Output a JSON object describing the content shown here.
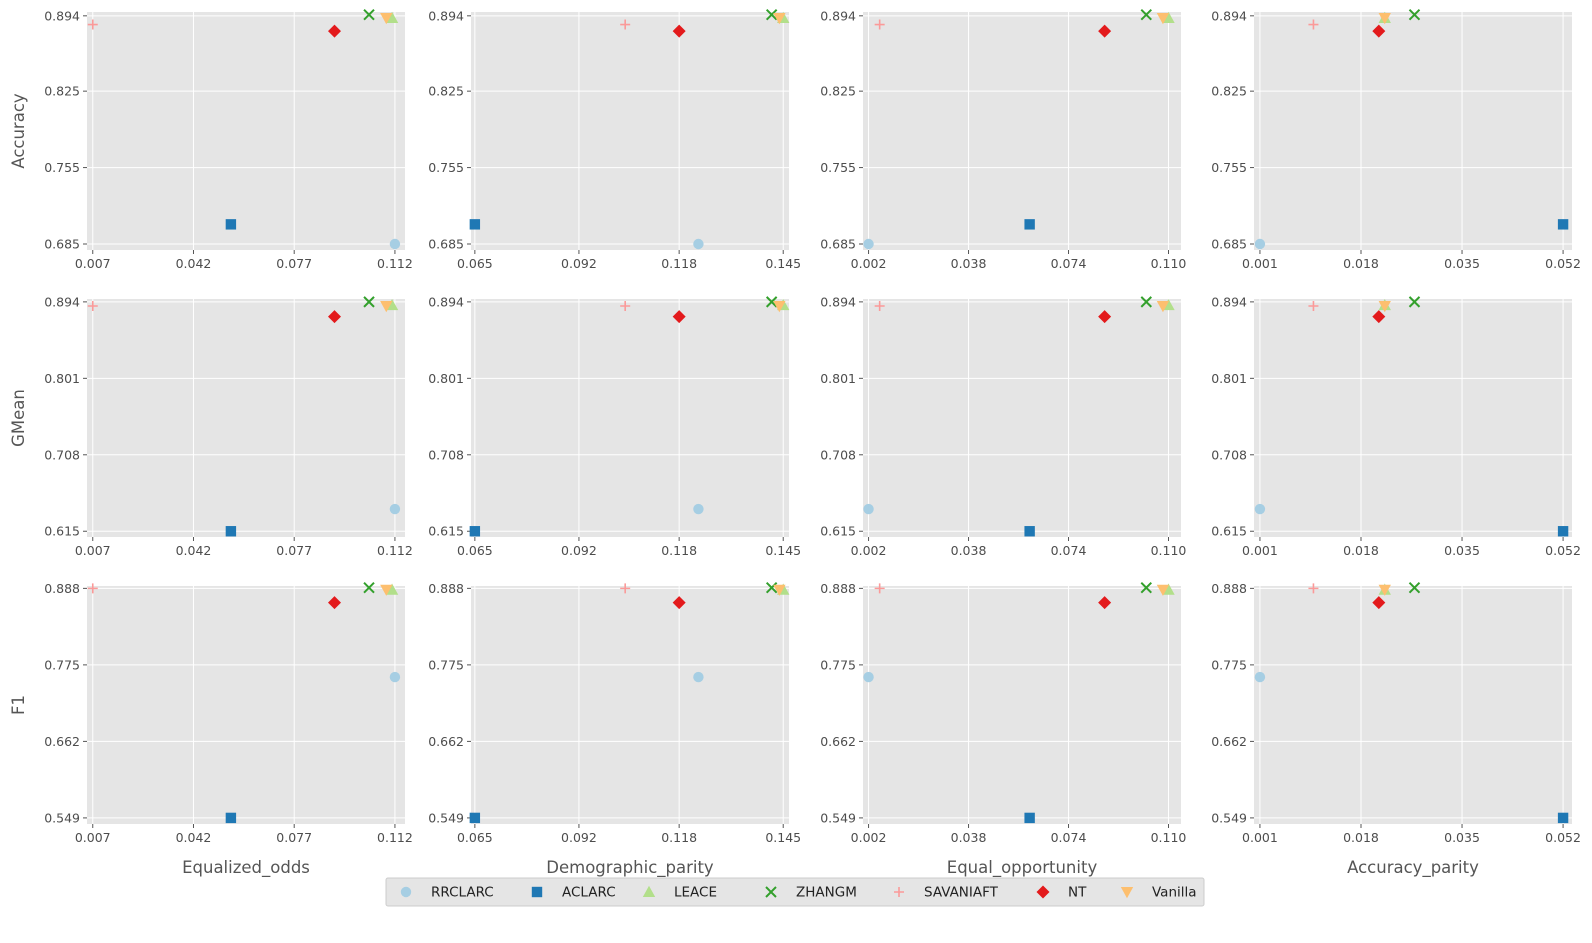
{
  "legend": [
    {
      "name": "RRCLARC",
      "color": "#a6cee3",
      "marker": "circle"
    },
    {
      "name": "ACLARC",
      "color": "#1f78b4",
      "marker": "square"
    },
    {
      "name": "LEACE",
      "color": "#b2df8a",
      "marker": "triangle-up"
    },
    {
      "name": "ZHANGM",
      "color": "#33a02c",
      "marker": "x"
    },
    {
      "name": "SAVANIAFT",
      "color": "#fb9a99",
      "marker": "plus"
    },
    {
      "name": "NT",
      "color": "#e31a1c",
      "marker": "diamond"
    },
    {
      "name": "Vanilla",
      "color": "#fdbf6f",
      "marker": "triangle-down"
    }
  ],
  "chart_data": {
    "type": "scatter",
    "grid": true,
    "legend_position": "bottom-center",
    "row_metrics": [
      "Accuracy",
      "GMean",
      "F1"
    ],
    "col_metrics": [
      "Equalized_odds",
      "Demographic_parity",
      "Equal_opportunity",
      "Accuracy_parity"
    ],
    "x_ticks": [
      [
        "0.007",
        "0.042",
        "0.077",
        "0.112"
      ],
      [
        "0.065",
        "0.092",
        "0.118",
        "0.145"
      ],
      [
        "0.002",
        "0.038",
        "0.074",
        "0.110"
      ],
      [
        "0.001",
        "0.018",
        "0.035",
        "0.052"
      ]
    ],
    "y_ticks": [
      [
        "0.685",
        "0.755",
        "0.825",
        "0.894"
      ],
      [
        "0.615",
        "0.708",
        "0.801",
        "0.894"
      ],
      [
        "0.549",
        "0.662",
        "0.775",
        "0.888"
      ]
    ],
    "x_ranges": [
      [
        0.005,
        0.1155
      ],
      [
        0.064,
        0.1465
      ],
      [
        0.0,
        0.1145
      ],
      [
        0.0,
        0.0535
      ]
    ],
    "y_ranges": [
      [
        0.6795,
        0.8975
      ],
      [
        0.608,
        0.8975
      ],
      [
        0.54,
        0.8915
      ]
    ],
    "x_values": {
      "RRCLARC": [
        0.112,
        0.123,
        0.002,
        0.001
      ],
      "ACLARC": [
        0.055,
        0.065,
        0.06,
        0.052
      ],
      "LEACE": [
        0.111,
        0.145,
        0.11,
        0.022
      ],
      "ZHANGM": [
        0.103,
        0.142,
        0.102,
        0.027
      ],
      "SAVANIAFT": [
        0.007,
        0.104,
        0.006,
        0.01
      ],
      "NT": [
        0.091,
        0.118,
        0.087,
        0.021
      ],
      "Vanilla": [
        0.109,
        0.144,
        0.108,
        0.022
      ]
    },
    "y_values": {
      "Accuracy": {
        "RRCLARC": 0.685,
        "ACLARC": 0.703,
        "LEACE": 0.892,
        "ZHANGM": 0.895,
        "SAVANIAFT": 0.886,
        "NT": 0.88,
        "Vanilla": 0.892
      },
      "GMean": {
        "RRCLARC": 0.642,
        "ACLARC": 0.615,
        "LEACE": 0.89,
        "ZHANGM": 0.894,
        "SAVANIAFT": 0.889,
        "NT": 0.876,
        "Vanilla": 0.889
      },
      "F1": {
        "RRCLARC": 0.757,
        "ACLARC": 0.549,
        "LEACE": 0.886,
        "ZHANGM": 0.889,
        "SAVANIAFT": 0.888,
        "NT": 0.867,
        "Vanilla": 0.886
      }
    }
  }
}
